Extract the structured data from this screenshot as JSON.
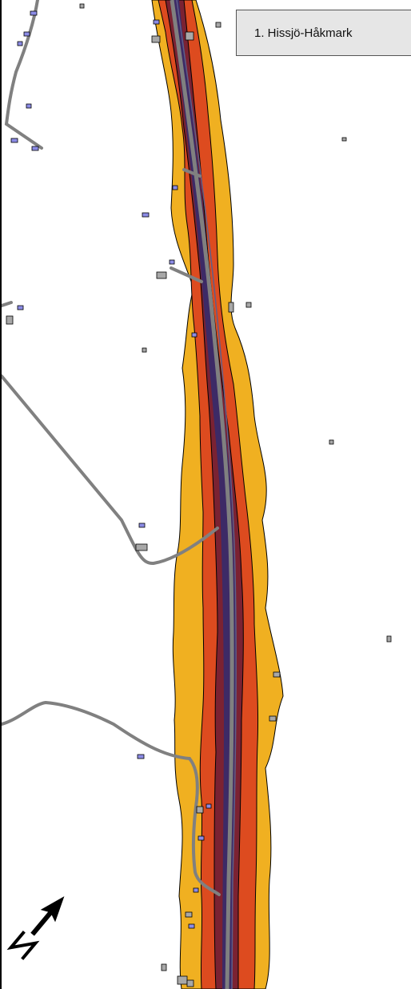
{
  "map": {
    "title": "1. Hissjö-Håkmark",
    "north_arrow": "N",
    "colors": {
      "zone_outer": "#f0b021",
      "zone_mid": "#dd4b1f",
      "zone_inner": "#7b2232",
      "zone_core": "#3d2a66",
      "road": "#808080",
      "building_residential": "#8c8ce6",
      "building_other": "#a8a8a8",
      "title_box": "#e6e6e6"
    },
    "icons": [
      "north-arrow-icon"
    ]
  }
}
